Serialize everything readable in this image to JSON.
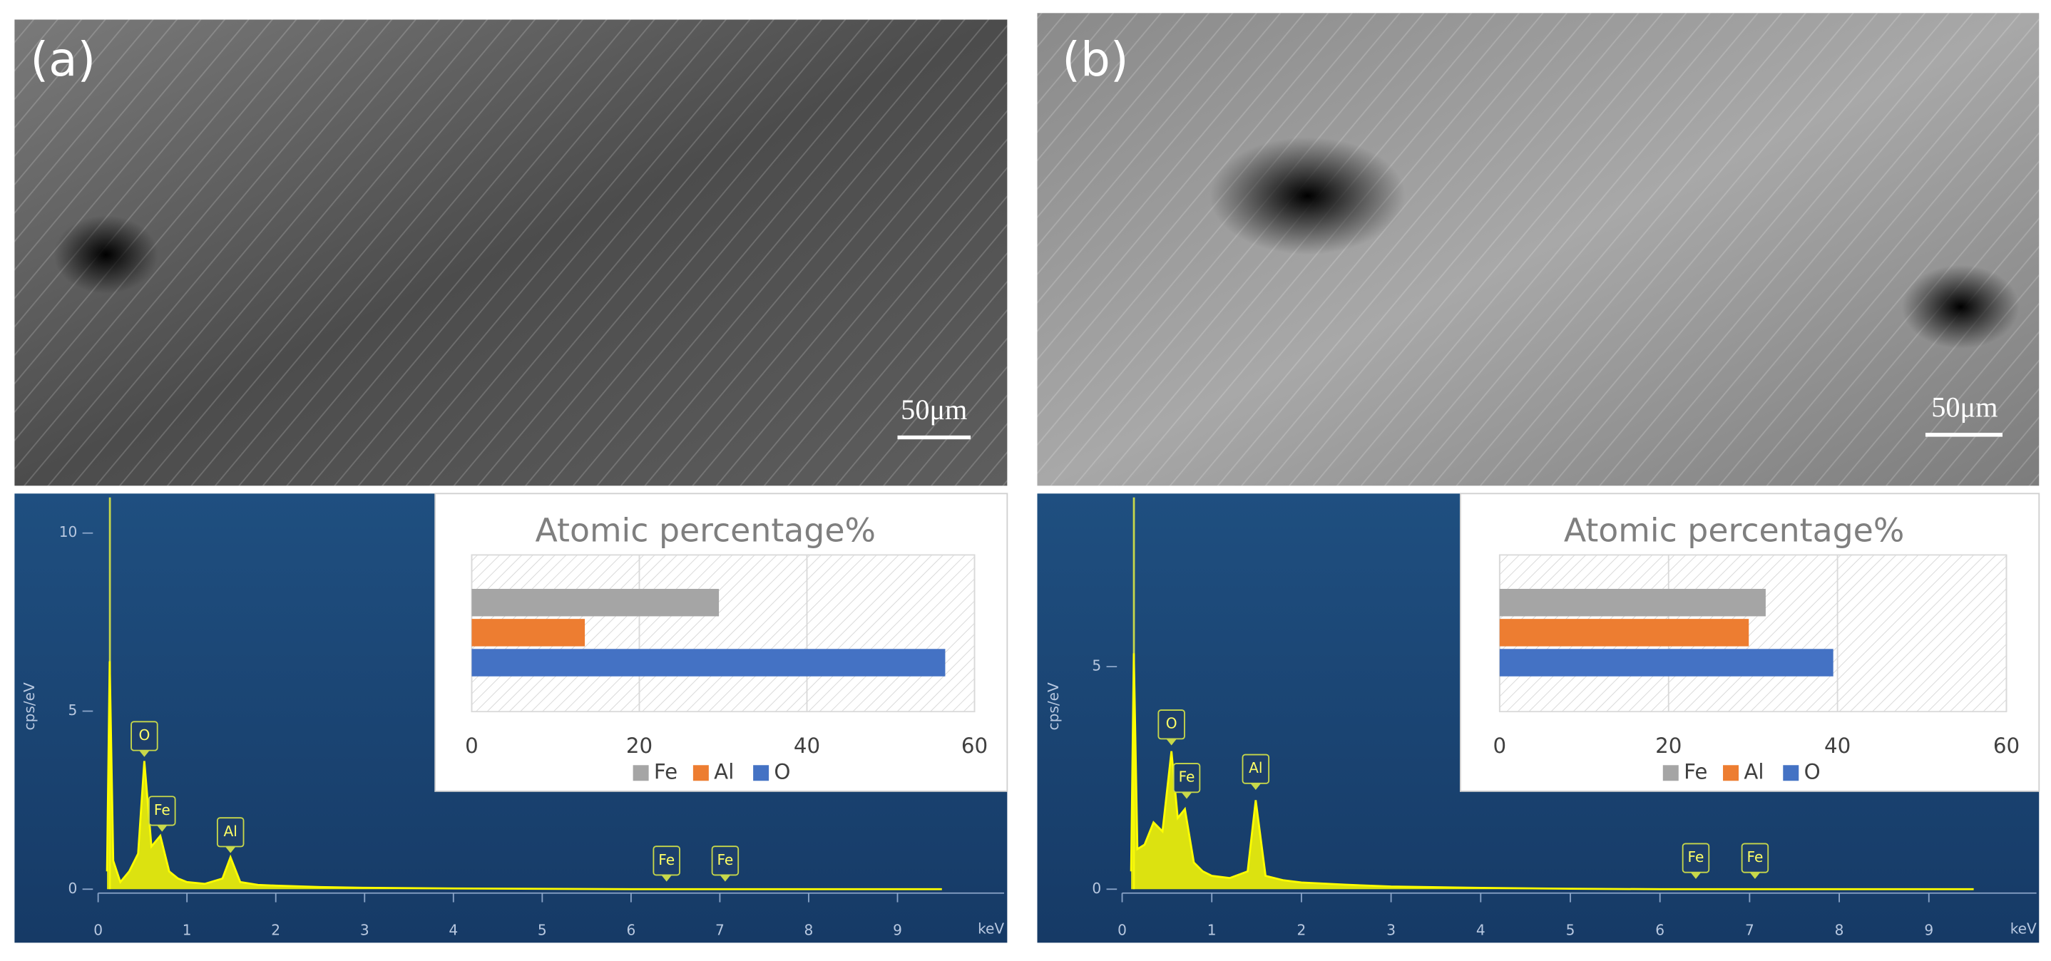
{
  "panels": [
    {
      "label": "(a)",
      "scale_bar": "50μm"
    },
    {
      "label": "(b)",
      "scale_bar": "50μm"
    }
  ],
  "chart_data": [
    {
      "type": "line",
      "y_label": "cps/eV",
      "x_label": "keV",
      "color": "#ffff00",
      "x": [
        0.1,
        0.13,
        0.17,
        0.25,
        0.35,
        0.45,
        0.52,
        0.6,
        0.7,
        0.8,
        0.9,
        1.0,
        1.2,
        1.4,
        1.49,
        1.6,
        1.8,
        2.0,
        2.5,
        3,
        4,
        5,
        6,
        7,
        8,
        9.5
      ],
      "values": [
        0.5,
        6.4,
        0.8,
        0.2,
        0.5,
        1.0,
        3.6,
        1.2,
        1.5,
        0.5,
        0.3,
        0.2,
        0.15,
        0.3,
        0.9,
        0.2,
        0.12,
        0.1,
        0.06,
        0.04,
        0.02,
        0.01,
        0,
        0,
        0,
        0
      ],
      "xlim": [
        0,
        10.2
      ],
      "ylim": [
        0,
        11
      ],
      "xticks": [
        0,
        1,
        2,
        3,
        4,
        5,
        6,
        7,
        8,
        9
      ],
      "yticks": [
        0,
        5,
        10
      ],
      "annotations": [
        {
          "text": "O",
          "x": 0.52,
          "y": 4.3
        },
        {
          "text": "Fe",
          "x": 0.72,
          "y": 2.2
        },
        {
          "text": "Al",
          "x": 1.49,
          "y": 1.6
        },
        {
          "text": "Fe",
          "x": 6.4,
          "y": 0.8
        },
        {
          "text": "Fe",
          "x": 7.06,
          "y": 0.8
        }
      ]
    },
    {
      "type": "bar",
      "orientation": "horizontal",
      "title": "Atomic percentage%",
      "categories": [
        "Fe",
        "Al",
        "O"
      ],
      "values": [
        29.5,
        13.5,
        56.5
      ],
      "colors": [
        "#a5a5a5",
        "#ed7d31",
        "#4472c4"
      ],
      "xlim": [
        0,
        60
      ],
      "xticks": [
        0,
        20,
        40,
        60
      ],
      "grid": true
    },
    {
      "type": "line",
      "y_label": "cps/eV",
      "x_label": "keV",
      "color": "#ffff00",
      "x": [
        0.1,
        0.13,
        0.17,
        0.25,
        0.35,
        0.45,
        0.55,
        0.62,
        0.7,
        0.8,
        0.9,
        1.0,
        1.2,
        1.4,
        1.49,
        1.6,
        1.8,
        2.0,
        2.5,
        3,
        4,
        5,
        6,
        7,
        8,
        9.5
      ],
      "values": [
        0.4,
        5.3,
        0.9,
        1.0,
        1.5,
        1.3,
        3.1,
        1.6,
        1.8,
        0.6,
        0.4,
        0.3,
        0.25,
        0.4,
        2.0,
        0.3,
        0.2,
        0.15,
        0.1,
        0.06,
        0.03,
        0.01,
        0,
        0,
        0,
        0
      ],
      "xlim": [
        0,
        10.2
      ],
      "ylim": [
        0,
        8.8
      ],
      "xticks": [
        0,
        1,
        2,
        3,
        4,
        5,
        6,
        7,
        8,
        9
      ],
      "yticks": [
        0,
        5
      ],
      "annotations": [
        {
          "text": "O",
          "x": 0.55,
          "y": 3.7
        },
        {
          "text": "Fe",
          "x": 0.72,
          "y": 2.5
        },
        {
          "text": "Al",
          "x": 1.49,
          "y": 2.7
        },
        {
          "text": "Fe",
          "x": 6.4,
          "y": 0.7
        },
        {
          "text": "Fe",
          "x": 7.06,
          "y": 0.7
        }
      ]
    },
    {
      "type": "bar",
      "orientation": "horizontal",
      "title": "Atomic percentage%",
      "categories": [
        "Fe",
        "Al",
        "O"
      ],
      "values": [
        31.5,
        29.5,
        39.5
      ],
      "colors": [
        "#a5a5a5",
        "#ed7d31",
        "#4472c4"
      ],
      "xlim": [
        0,
        60
      ],
      "xticks": [
        0,
        20,
        40,
        60
      ],
      "grid": true
    }
  ]
}
